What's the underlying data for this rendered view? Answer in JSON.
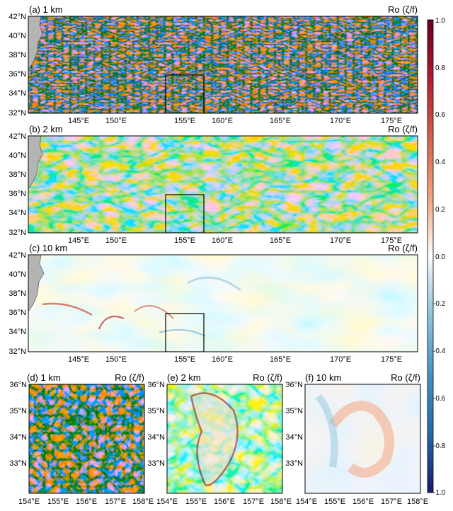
{
  "colors": {
    "land": "#b4b4b4",
    "positive": "#c0392b",
    "negative": "#2c3e9f",
    "box": "#000000"
  },
  "panels": [
    {
      "id": "a",
      "label": "(a) 1 km",
      "quantity": "Ro (ζ/f)",
      "y_ticks": [
        "42°N",
        "40°N",
        "38°N",
        "36°N",
        "34°N",
        "32°N"
      ],
      "x_ticks": [
        "145°E",
        "150°E",
        "155°E",
        "160°E",
        "165°E",
        "170°E",
        "175°E"
      ]
    },
    {
      "id": "b",
      "label": "(b) 2 km",
      "quantity": "Ro (ζ/f)",
      "y_ticks": [
        "42°N",
        "40°N",
        "38°N",
        "36°N",
        "34°N",
        "32°N"
      ],
      "x_ticks": [
        "145°E",
        "150°E",
        "155°E",
        "160°E",
        "165°E",
        "170°E",
        "175°E"
      ]
    },
    {
      "id": "c",
      "label": "(c) 10 km",
      "quantity": "Ro (ζ/f)",
      "y_ticks": [
        "42°N",
        "40°N",
        "38°N",
        "36°N",
        "34°N",
        "32°N"
      ],
      "x_ticks": [
        "145°E",
        "150°E",
        "155°E",
        "160°E",
        "165°E",
        "170°E",
        "175°E"
      ]
    },
    {
      "id": "d",
      "label": "(d) 1 km",
      "quantity": "Ro (ζ/f)",
      "y_ticks": [
        "36°N",
        "35°N",
        "34°N",
        "33°N"
      ],
      "x_ticks": [
        "154°E",
        "155°E",
        "156°E",
        "157°E",
        "158°E"
      ]
    },
    {
      "id": "e",
      "label": "(e) 2 km",
      "quantity": "Ro (ζ/f)",
      "y_ticks": [
        "36°N",
        "35°N",
        "34°N",
        "33°N"
      ],
      "x_ticks": [
        "154°E",
        "155°E",
        "156°E",
        "157°E",
        "158°E"
      ]
    },
    {
      "id": "f",
      "label": "(f) 10 km",
      "quantity": "Ro (ζ/f)",
      "y_ticks": [
        "36°N",
        "35°N",
        "34°N",
        "33°N"
      ],
      "x_ticks": [
        "154°E",
        "155°E",
        "156°E",
        "157°E",
        "158°E"
      ]
    }
  ],
  "colorbar": {
    "ticks": [
      "1.0",
      "0.8",
      "0.6",
      "0.4",
      "0.2",
      "0.0",
      "-0.2",
      "-0.4",
      "-0.6",
      "-0.8",
      "-1.0"
    ]
  }
}
